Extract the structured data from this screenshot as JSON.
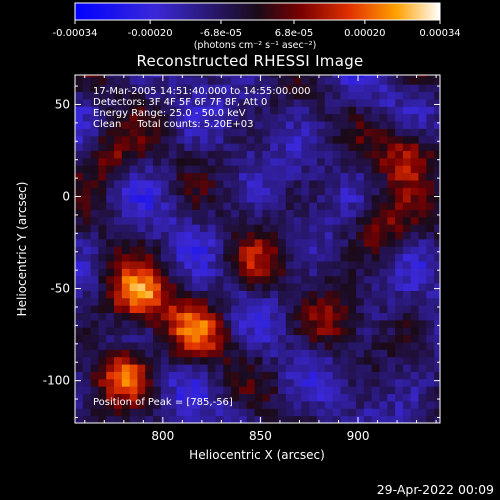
{
  "chart_data": {
    "type": "heatmap",
    "title": "Reconstructed RHESSI Image",
    "xlabel": "Heliocentric X (arcsec)",
    "ylabel": "Heliocentric Y (arcsec)",
    "xlim": [
      755,
      942
    ],
    "ylim": [
      -123,
      66
    ],
    "x_ticks": [
      800,
      850,
      900
    ],
    "y_ticks": [
      -100,
      -50,
      0,
      50
    ],
    "info_lines": [
      "17-Mar-2005 14:51:40.000 to 14:55:00.000",
      "Detectors: 3F 4F 5F 6F 7F 8F, Att 0",
      "Energy Range: 25.0 - 50.0 keV",
      "Clean     Total counts: 5.20E+03"
    ],
    "peak_label": "Position of Peak = [785,-56]",
    "peak_position": [
      785,
      -56
    ],
    "colorbar": {
      "range": [
        -0.00034,
        0.00034
      ],
      "tick_labels": [
        "-0.00034",
        "-0.00020",
        "-6.8e-05",
        "6.8e-05",
        "0.00020",
        "0.00034"
      ],
      "unit_label": "(photons cm⁻² s⁻¹ asec⁻²)"
    },
    "bright_sources": [
      {
        "x": 785,
        "y": -56,
        "value": 0.00034
      },
      {
        "x": 777,
        "y": -98,
        "value": 0.00028
      },
      {
        "x": 815,
        "y": -76,
        "value": 0.00022
      },
      {
        "x": 925,
        "y": 22,
        "value": 0.00024
      },
      {
        "x": 910,
        "y": -18,
        "value": 0.00018
      },
      {
        "x": 770,
        "y": 20,
        "value": 0.0002
      },
      {
        "x": 845,
        "y": -40,
        "value": 0.00016
      },
      {
        "x": 885,
        "y": -72,
        "value": 0.00014
      }
    ]
  },
  "footer": {
    "date": "29-Apr-2022 00:09"
  }
}
